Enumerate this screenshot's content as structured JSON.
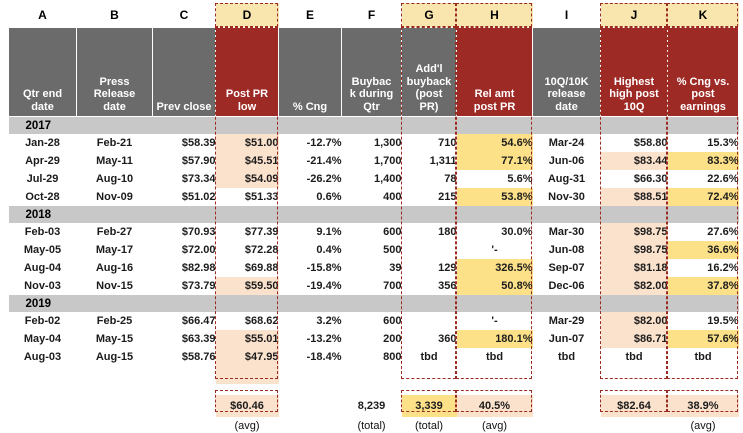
{
  "sheet": {
    "colors": {
      "header_gray": "#6b6b6b",
      "header_red": "#9e2a25",
      "year_band_gray": "#c8c8c8",
      "highlight_peach": "#fbe2cd",
      "highlight_yellow": "#fde189",
      "letter_cream": "#f8e6ae",
      "negative_red": "#e8261f",
      "marquee_dash_red": "#9b2b20"
    },
    "column_letters": [
      "A",
      "B",
      "C",
      "D",
      "E",
      "F",
      "G",
      "H",
      "I",
      "J",
      "K"
    ],
    "highlighted_columns": [
      "D",
      "G",
      "H",
      "J",
      "K"
    ],
    "headers": [
      {
        "letter": "A",
        "text": "Qtr end\ndate",
        "theme": "gray"
      },
      {
        "letter": "B",
        "text": "Press\nRelease\ndate",
        "theme": "gray"
      },
      {
        "letter": "C",
        "text": "Prev close",
        "theme": "gray"
      },
      {
        "letter": "D",
        "text": "Post PR\nlow",
        "theme": "red"
      },
      {
        "letter": "E",
        "text": "% Cng",
        "theme": "gray"
      },
      {
        "letter": "F",
        "text": "Buybac\nk during\nQtr",
        "theme": "gray"
      },
      {
        "letter": "G",
        "text": "Add'l\nbuyback\n(post\nPR)",
        "theme": "gray"
      },
      {
        "letter": "H",
        "text": "Rel amt\npost PR",
        "theme": "red"
      },
      {
        "letter": "I",
        "text": "10Q/10K\nrelease\ndate",
        "theme": "gray"
      },
      {
        "letter": "J",
        "text": "Highest\nhigh post\n10Q",
        "theme": "red"
      },
      {
        "letter": "K",
        "text": "% Cng vs.\npost\nearnings",
        "theme": "red"
      }
    ],
    "sections": [
      {
        "year": "2017",
        "rows": [
          {
            "cells": [
              "Jan-28",
              "Feb-21",
              "$58.39",
              {
                "v": "$51.00",
                "bg": "peach"
              },
              {
                "v": "-12.7%",
                "fg": "neg"
              },
              "1,300",
              "710",
              {
                "v": "54.6%",
                "bg": "yellow"
              },
              "Mar-24",
              "$58.80",
              "15.3%"
            ]
          },
          {
            "cells": [
              "Apr-29",
              "May-11",
              "$57.90",
              {
                "v": "$45.51",
                "bg": "peach"
              },
              {
                "v": "-21.4%",
                "fg": "neg"
              },
              "1,700",
              "1,311",
              {
                "v": "77.1%",
                "bg": "yellow"
              },
              "Jun-06",
              {
                "v": "$83.44",
                "bg": "peach"
              },
              {
                "v": "83.3%",
                "bg": "yellow"
              }
            ]
          },
          {
            "cells": [
              "Jul-29",
              "Aug-10",
              "$73.34",
              {
                "v": "$54.09",
                "bg": "peach"
              },
              {
                "v": "-26.2%",
                "fg": "neg"
              },
              "1,400",
              "78",
              "5.6%",
              "Aug-31",
              "$66.30",
              "22.6%"
            ]
          },
          {
            "cells": [
              "Oct-28",
              "Nov-09",
              "$51.02",
              "$51.33",
              "0.6%",
              "400",
              "215",
              {
                "v": "53.8%",
                "bg": "yellow"
              },
              "Nov-30",
              {
                "v": "$88.51",
                "bg": "peach"
              },
              {
                "v": "72.4%",
                "bg": "yellow"
              }
            ]
          }
        ]
      },
      {
        "year": "2018",
        "rows": [
          {
            "cells": [
              "Feb-03",
              "Feb-27",
              "$70.93",
              "$77.39",
              "9.1%",
              "600",
              "180",
              "30.0%",
              "Mar-30",
              {
                "v": "$98.75",
                "bg": "peach"
              },
              "27.6%"
            ]
          },
          {
            "cells": [
              "May-05",
              "May-17",
              "$72.00",
              "$72.28",
              "0.4%",
              "500",
              "",
              {
                "v": "'-",
                "align": "center"
              },
              "Jun-08",
              {
                "v": "$98.75",
                "bg": "peach"
              },
              {
                "v": "36.6%",
                "bg": "yellow"
              }
            ]
          },
          {
            "cells": [
              "Aug-04",
              "Aug-16",
              "$82.98",
              "$69.88",
              {
                "v": "-15.8%",
                "fg": "neg"
              },
              "39",
              "129",
              {
                "v": "326.5%",
                "bg": "yellow"
              },
              "Sep-07",
              {
                "v": "$81.18",
                "bg": "peach"
              },
              "16.2%"
            ]
          },
          {
            "cells": [
              "Nov-03",
              "Nov-15",
              "$73.79",
              {
                "v": "$59.50",
                "bg": "peach"
              },
              {
                "v": "-19.4%",
                "fg": "neg"
              },
              "700",
              "356",
              {
                "v": "50.8%",
                "bg": "yellow"
              },
              "Dec-06",
              {
                "v": "$82.00",
                "bg": "peach"
              },
              {
                "v": "37.8%",
                "bg": "yellow"
              }
            ]
          }
        ]
      },
      {
        "year": "2019",
        "rows": [
          {
            "cells": [
              "Feb-02",
              "Feb-25",
              "$66.47",
              "$68.62",
              "3.2%",
              "600",
              "",
              {
                "v": "'-",
                "align": "center"
              },
              "Mar-29",
              {
                "v": "$82.00",
                "bg": "peach"
              },
              "19.5%"
            ]
          },
          {
            "cells": [
              "May-04",
              "May-15",
              "$63.39",
              {
                "v": "$55.01",
                "bg": "peach"
              },
              {
                "v": "-13.2%",
                "fg": "neg"
              },
              "200",
              "360",
              {
                "v": "180.1%",
                "bg": "yellow"
              },
              "Jun-07",
              {
                "v": "$86.71",
                "bg": "peach"
              },
              {
                "v": "57.6%",
                "bg": "yellow"
              }
            ]
          },
          {
            "cells": [
              "Aug-03",
              "Aug-15",
              "$58.76",
              {
                "v": "$47.95",
                "bg": "peach"
              },
              {
                "v": "-18.4%",
                "fg": "neg"
              },
              "800",
              {
                "v": "tbd",
                "fg": "brand",
                "align": "center"
              },
              {
                "v": "tbd",
                "fg": "brand",
                "align": "center"
              },
              {
                "v": "tbd",
                "fg": "brand",
                "align": "center"
              },
              {
                "v": "tbd",
                "fg": "brand",
                "align": "center"
              },
              {
                "v": "tbd",
                "fg": "brand",
                "align": "center"
              }
            ]
          }
        ]
      }
    ],
    "summary": {
      "values": [
        "",
        "",
        "",
        {
          "v": "$60.46",
          "bg": "peach"
        },
        "",
        "8,239",
        {
          "v": "3,339",
          "bg": "yellow"
        },
        {
          "v": "40.5%",
          "bg": "peach"
        },
        "",
        {
          "v": "$82.64",
          "bg": "peach"
        },
        {
          "v": "38.9%",
          "bg": "peach"
        }
      ],
      "labels": [
        "",
        "",
        "",
        "(avg)",
        "",
        "(total)",
        "(total)",
        "(avg)",
        "",
        "",
        "(avg)"
      ]
    }
  }
}
